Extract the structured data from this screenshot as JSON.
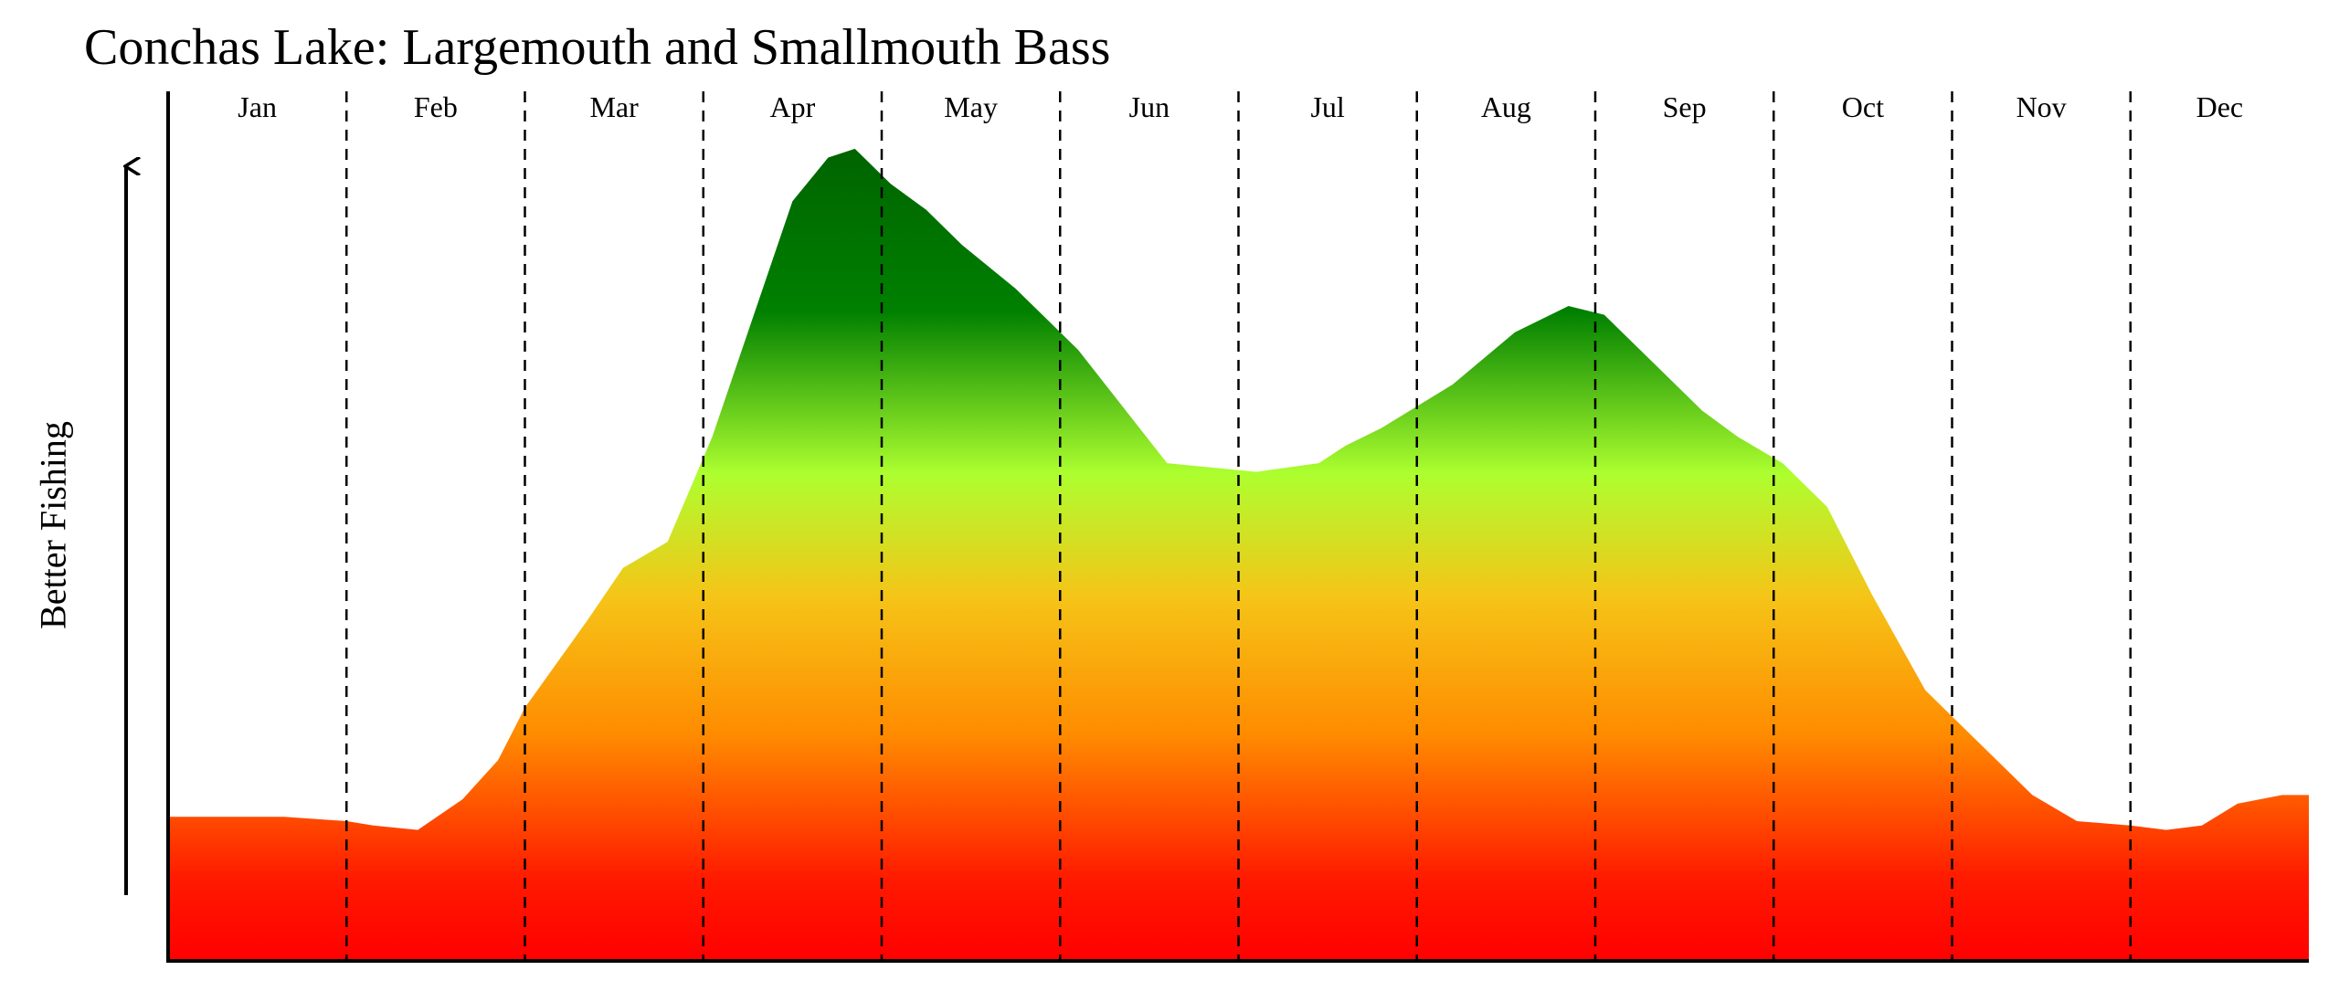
{
  "chart_data": {
    "type": "area",
    "title": "Conchas Lake: Largemouth and Smallmouth Bass",
    "ylabel": "Better Fishing",
    "xlabel": "",
    "categories": [
      "Jan",
      "Feb",
      "Mar",
      "Apr",
      "May",
      "Jun",
      "Jul",
      "Aug",
      "Sep",
      "Oct",
      "Nov",
      "Dec"
    ],
    "x_range": [
      0,
      12
    ],
    "ylim": [
      0,
      100
    ],
    "grid": "vertical dashed month dividers",
    "legend": "none",
    "gradient": [
      "#ff0000",
      "#ff8c00",
      "#f5c518",
      "#adff2f",
      "#008000",
      "#006400"
    ],
    "x": [
      0,
      0.65,
      1.0,
      1.15,
      1.4,
      1.65,
      1.85,
      2.0,
      2.35,
      2.55,
      2.8,
      3.05,
      3.5,
      3.7,
      3.85,
      4.05,
      4.25,
      4.45,
      4.75,
      5.1,
      5.6,
      6.1,
      6.45,
      6.6,
      6.8,
      7.2,
      7.55,
      7.85,
      8.05,
      8.35,
      8.6,
      8.8,
      9.05,
      9.3,
      9.55,
      9.85,
      10.25,
      10.45,
      10.7,
      11.0,
      11.2,
      11.4,
      11.6,
      11.85
    ],
    "values": [
      16.5,
      16.5,
      16,
      15.5,
      15,
      18.5,
      23,
      29,
      39,
      45,
      48,
      60,
      87,
      92,
      93,
      89,
      86,
      82,
      77,
      70,
      57,
      56,
      57,
      59,
      61,
      66,
      72,
      75,
      74,
      68,
      63,
      60,
      57,
      52,
      42,
      31,
      23,
      19,
      16,
      15.5,
      15,
      15.5,
      18,
      19
    ]
  }
}
